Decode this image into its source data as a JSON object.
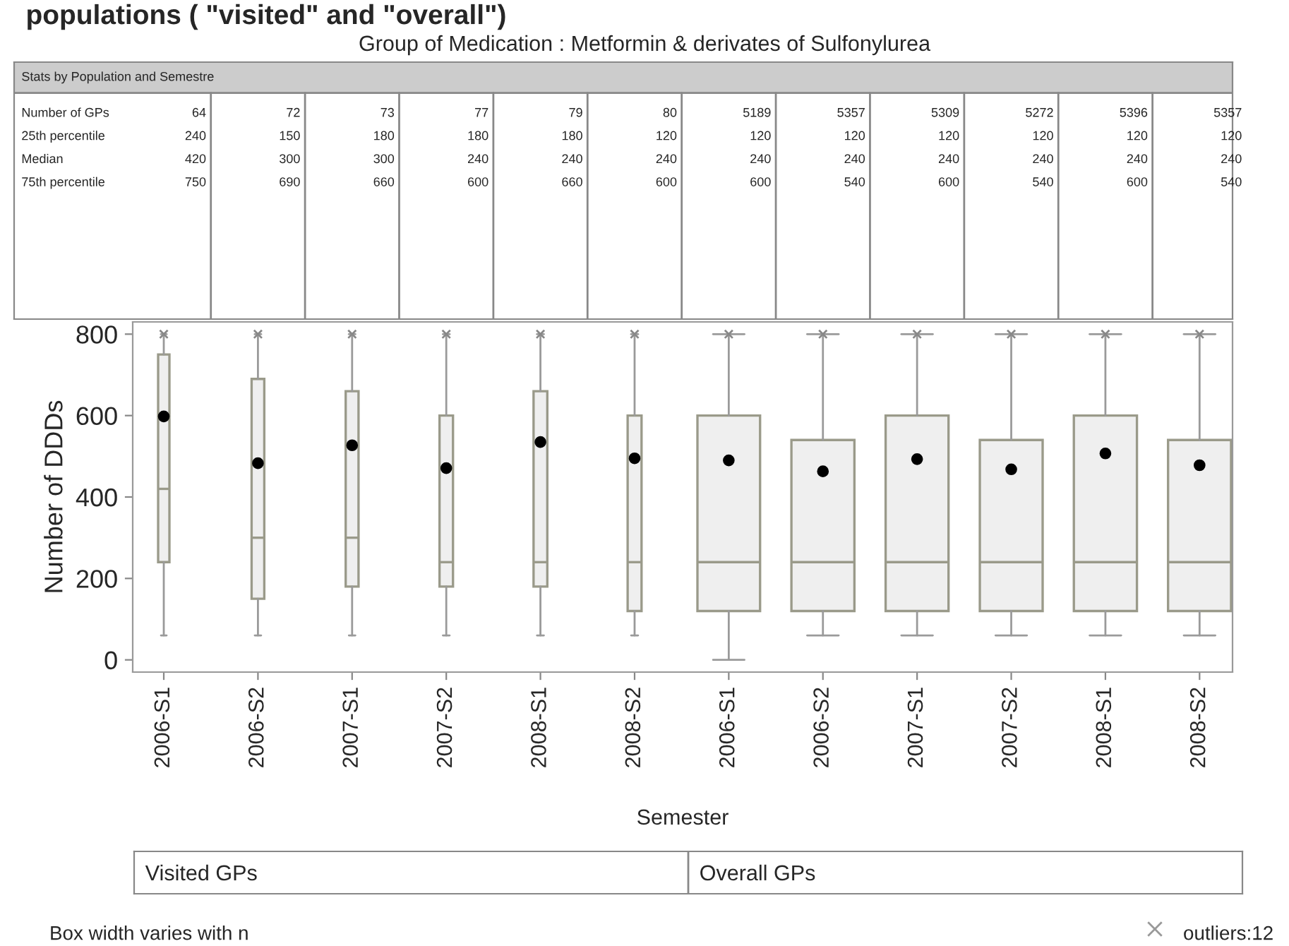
{
  "chart_data": {
    "type": "box",
    "title": "populations ( \"visited\" and \"overall\")",
    "subtitle": "Group of Medication : Metformin & derivates of Sulfonylurea",
    "xlabel": "Semester",
    "ylabel": "Number of DDDs",
    "categories": [
      "2006-S1",
      "2006-S2",
      "2007-S1",
      "2007-S2",
      "2008-S1",
      "2008-S2",
      "2006-S1",
      "2006-S2",
      "2007-S1",
      "2007-S2",
      "2008-S1",
      "2008-S2"
    ],
    "series": [
      {
        "color": "#efefef",
        "boxes": [
          {
            "low": 60,
            "q1": 240,
            "median": 420,
            "q3": 750,
            "high": 800,
            "mean": 598,
            "outliers": [
              800
            ]
          },
          {
            "low": 60,
            "q1": 150,
            "median": 300,
            "q3": 690,
            "high": 800,
            "mean": 483,
            "outliers": [
              800
            ]
          },
          {
            "low": 60,
            "q1": 180,
            "median": 300,
            "q3": 660,
            "high": 800,
            "mean": 527,
            "outliers": [
              800
            ]
          },
          {
            "low": 60,
            "q1": 180,
            "median": 240,
            "q3": 600,
            "high": 800,
            "mean": 471,
            "outliers": [
              800
            ]
          },
          {
            "low": 60,
            "q1": 180,
            "median": 240,
            "q3": 660,
            "high": 800,
            "mean": 535,
            "outliers": [
              800
            ]
          },
          {
            "low": 60,
            "q1": 120,
            "median": 240,
            "q3": 600,
            "high": 800,
            "mean": 495,
            "outliers": [
              800
            ]
          },
          {
            "low": 0,
            "q1": 120,
            "median": 240,
            "q3": 600,
            "high": 800,
            "mean": 490,
            "outliers": [
              800
            ]
          },
          {
            "low": 60,
            "q1": 120,
            "median": 240,
            "q3": 540,
            "high": 800,
            "mean": 463,
            "outliers": [
              800
            ]
          },
          {
            "low": 60,
            "q1": 120,
            "median": 240,
            "q3": 600,
            "high": 800,
            "mean": 493,
            "outliers": [
              800
            ]
          },
          {
            "low": 60,
            "q1": 120,
            "median": 240,
            "q3": 540,
            "high": 800,
            "mean": 468,
            "outliers": [
              800
            ]
          },
          {
            "low": 60,
            "q1": 120,
            "median": 240,
            "q3": 600,
            "high": 800,
            "mean": 507,
            "outliers": [
              800
            ]
          },
          {
            "low": 60,
            "q1": 120,
            "median": 240,
            "q3": 540,
            "high": 800,
            "mean": 478,
            "outliers": [
              800
            ]
          }
        ]
      }
    ],
    "ylim": [
      -30,
      830
    ],
    "yticks": [
      0,
      200,
      400,
      600,
      800
    ],
    "annotations": [
      "Stats by Population and Semestre",
      "Number of GPs",
      "25th percentile",
      "Median",
      "75th percentile",
      "64",
      "72",
      "73",
      "77",
      "79",
      "80",
      "5189",
      "5357",
      "5309",
      "5272",
      "5396",
      "5357",
      "240",
      "150",
      "180",
      "180",
      "180",
      "120",
      "120",
      "120",
      "120",
      "120",
      "120",
      "120",
      "420",
      "300",
      "300",
      "240",
      "240",
      "240",
      "240",
      "240",
      "240",
      "240",
      "240",
      "240",
      "750",
      "690",
      "660",
      "600",
      "660",
      "600",
      "600",
      "540",
      "600",
      "540",
      "600",
      "540",
      "Visited GPs",
      "Overall GPs",
      "Box width varies with n",
      "outliers:12"
    ]
  }
}
